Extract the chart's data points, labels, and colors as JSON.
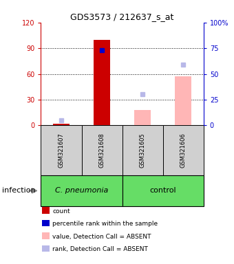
{
  "title": "GDS3573 / 212637_s_at",
  "samples": [
    "GSM321607",
    "GSM321608",
    "GSM321605",
    "GSM321606"
  ],
  "bar_width": 0.4,
  "count_values": [
    2,
    100,
    null,
    null
  ],
  "absent_value_values": [
    null,
    null,
    18,
    57
  ],
  "percentile_rank": [
    null,
    73,
    null,
    null
  ],
  "absent_rank_values": [
    5,
    null,
    30,
    59
  ],
  "ylim_left": [
    0,
    120
  ],
  "ylim_right": [
    0,
    100
  ],
  "yticks_left": [
    0,
    30,
    60,
    90,
    120
  ],
  "yticks_right": [
    0,
    25,
    50,
    75,
    100
  ],
  "ytick_labels_left": [
    "0",
    "30",
    "60",
    "90",
    "120"
  ],
  "ytick_labels_right": [
    "0",
    "25",
    "50",
    "75",
    "100%"
  ],
  "left_axis_color": "#cc0000",
  "right_axis_color": "#0000cc",
  "count_color": "#cc0000",
  "absent_value_color": "#ffb6b6",
  "percentile_color": "#0000cc",
  "absent_rank_color": "#b8b8e8",
  "group1_label": "C. pneumonia",
  "group2_label": "control",
  "group_label": "infection",
  "group_color": "#66dd66",
  "sample_bg_color": "#d0d0d0",
  "legend_items": [
    {
      "color": "#cc0000",
      "label": "count"
    },
    {
      "color": "#0000cc",
      "label": "percentile rank within the sample"
    },
    {
      "color": "#ffb6b6",
      "label": "value, Detection Call = ABSENT"
    },
    {
      "color": "#b8b8e8",
      "label": "rank, Detection Call = ABSENT"
    }
  ]
}
